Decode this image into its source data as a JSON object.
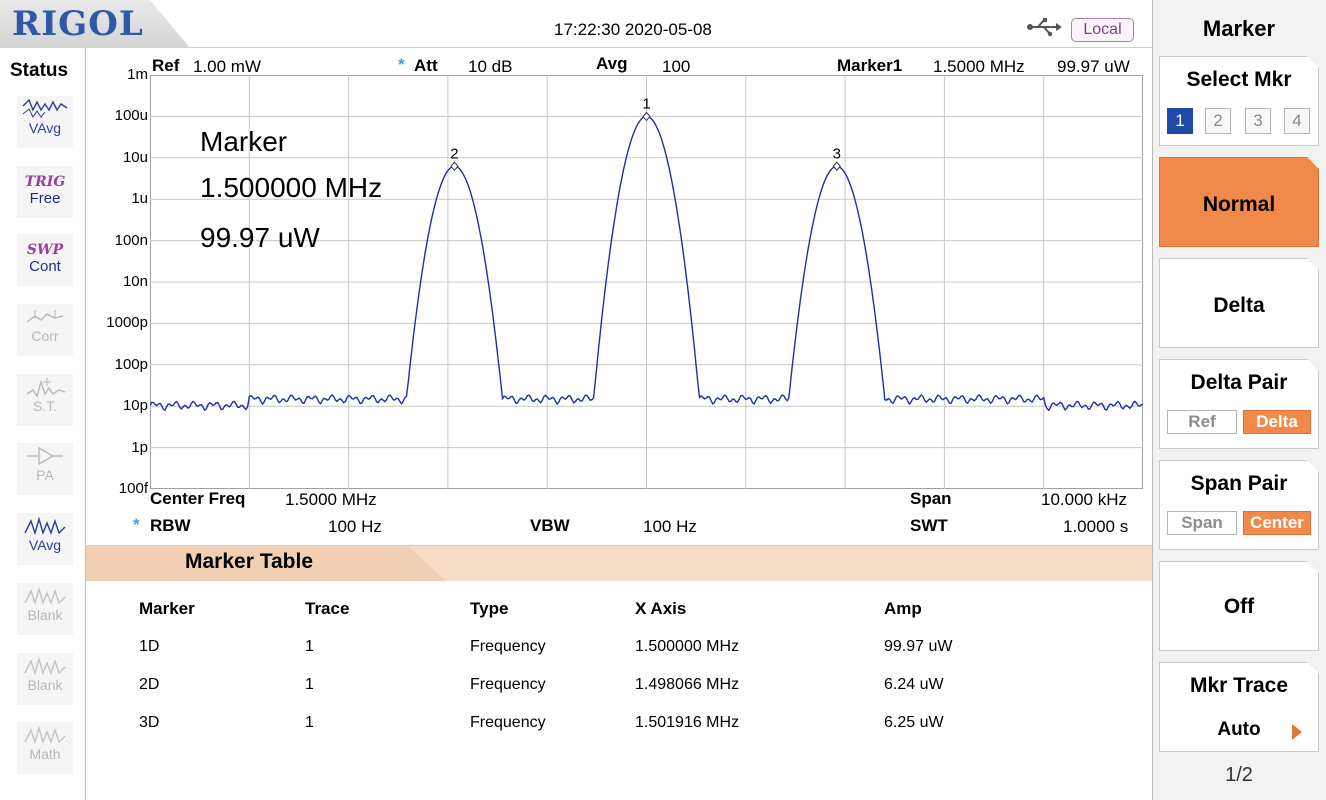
{
  "header": {
    "brand": "RIGOL",
    "datetime": "17:22:30 2020-05-08",
    "local_label": "Local"
  },
  "status": {
    "title": "Status",
    "items": [
      {
        "name": "avg",
        "label": "VAvg",
        "state": "active"
      },
      {
        "name": "trig",
        "tag": "TRIG",
        "label": "Free",
        "state": "active"
      },
      {
        "name": "swp",
        "tag": "SWP",
        "label": "Cont",
        "state": "active"
      },
      {
        "name": "corr",
        "label": "Corr",
        "state": "dim"
      },
      {
        "name": "st",
        "label": "S.T.",
        "state": "dim"
      },
      {
        "name": "pa",
        "label": "PA",
        "state": "dim"
      },
      {
        "name": "vavg2",
        "label": "VAvg",
        "state": "active"
      },
      {
        "name": "blank1",
        "label": "Blank",
        "state": "dim"
      },
      {
        "name": "blank2",
        "label": "Blank",
        "state": "dim"
      },
      {
        "name": "math",
        "label": "Math",
        "state": "dim"
      }
    ]
  },
  "top_info": {
    "ref_label": "Ref",
    "ref_value": "1.00 mW",
    "att_label": "Att",
    "att_value": "10 dB",
    "avg_label": "Avg",
    "avg_value": "100",
    "marker_label": "Marker1",
    "marker_freq": "1.5000 MHz",
    "marker_amp": "99.97 uW"
  },
  "overlay": {
    "title": "Marker",
    "freq": "1.500000 MHz",
    "amp": "99.97 uW"
  },
  "bottom_info": {
    "center_label": "Center Freq",
    "center_value": "1.5000 MHz",
    "span_label": "Span",
    "span_value": "10.000 kHz",
    "rbw_label": "RBW",
    "rbw_value": "100 Hz",
    "vbw_label": "VBW",
    "vbw_value": "100 Hz",
    "swt_label": "SWT",
    "swt_value": "1.0000 s"
  },
  "chart_data": {
    "type": "line",
    "y_tick_labels": [
      "1m",
      "100u",
      "10u",
      "1u",
      "100n",
      "10n",
      "1000p",
      "100p",
      "10p",
      "1p",
      "100f"
    ],
    "ylim_log10_watts": [
      -3,
      -13
    ],
    "x_range_mhz": [
      1.495,
      1.505
    ],
    "grid": true,
    "trace_color": "#1f2fa8",
    "markers": [
      {
        "id": "1",
        "freq_mhz": 1.5,
        "amp_uw": 99.97
      },
      {
        "id": "2",
        "freq_mhz": 1.498066,
        "amp_uw": 6.24
      },
      {
        "id": "3",
        "freq_mhz": 1.501916,
        "amp_uw": 6.25
      }
    ],
    "noise_floor_w": 1.5e-11
  },
  "marker_table": {
    "title": "Marker Table",
    "headers": [
      "Marker",
      "Trace",
      "Type",
      "X Axis",
      "Amp"
    ],
    "rows": [
      [
        "1D",
        "1",
        "Frequency",
        "1.500000 MHz",
        "99.97 uW"
      ],
      [
        "2D",
        "1",
        "Frequency",
        "1.498066 MHz",
        "6.24 uW"
      ],
      [
        "3D",
        "1",
        "Frequency",
        "1.501916 MHz",
        "6.25 uW"
      ]
    ]
  },
  "menu": {
    "title": "Marker",
    "select_mkr": {
      "label": "Select Mkr",
      "options": [
        "1",
        "2",
        "3",
        "4"
      ],
      "selected": "1"
    },
    "normal": "Normal",
    "delta": "Delta",
    "delta_pair": {
      "label": "Delta Pair",
      "ref": "Ref",
      "delta": "Delta"
    },
    "span_pair": {
      "label": "Span Pair",
      "span": "Span",
      "center": "Center"
    },
    "off": "Off",
    "mkr_trace": {
      "label": "Mkr Trace",
      "value": "Auto"
    },
    "page": "1/2",
    "accent": "#f0894a"
  }
}
